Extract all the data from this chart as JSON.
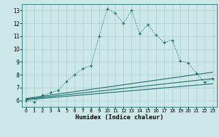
{
  "xlabel": "Humidex (Indice chaleur)",
  "bg_color": "#cce8e8",
  "grid_color": "#aacccc",
  "line_color": "#1a6b6b",
  "xlim": [
    -0.5,
    23.5
  ],
  "ylim": [
    5.5,
    13.5
  ],
  "xticks": [
    0,
    1,
    2,
    3,
    4,
    5,
    6,
    7,
    8,
    9,
    10,
    11,
    12,
    13,
    14,
    15,
    16,
    17,
    18,
    19,
    20,
    21,
    22,
    23
  ],
  "yticks": [
    6,
    7,
    8,
    9,
    10,
    11,
    12,
    13
  ],
  "main_x": [
    0,
    1,
    2,
    3,
    4,
    5,
    6,
    7,
    8,
    9,
    10,
    11,
    12,
    13,
    14,
    15,
    16,
    17,
    18,
    19,
    20,
    21,
    22,
    23
  ],
  "main_y": [
    6.0,
    5.9,
    6.4,
    6.6,
    6.8,
    7.5,
    8.0,
    8.5,
    8.7,
    11.0,
    13.15,
    12.8,
    12.0,
    13.0,
    11.2,
    11.9,
    11.1,
    10.5,
    10.7,
    9.1,
    8.9,
    8.1,
    7.4,
    7.7
  ],
  "line1_x": [
    0,
    23
  ],
  "line1_y": [
    6.05,
    7.3
  ],
  "line2_x": [
    0,
    23
  ],
  "line2_y": [
    6.1,
    7.7
  ],
  "line3_x": [
    0,
    23
  ],
  "line3_y": [
    6.15,
    8.2
  ]
}
